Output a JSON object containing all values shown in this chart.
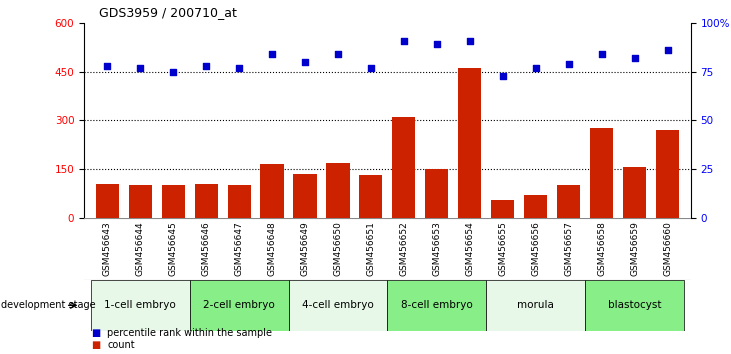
{
  "title": "GDS3959 / 200710_at",
  "samples": [
    "GSM456643",
    "GSM456644",
    "GSM456645",
    "GSM456646",
    "GSM456647",
    "GSM456648",
    "GSM456649",
    "GSM456650",
    "GSM456651",
    "GSM456652",
    "GSM456653",
    "GSM456654",
    "GSM456655",
    "GSM456656",
    "GSM456657",
    "GSM456658",
    "GSM456659",
    "GSM456660"
  ],
  "counts": [
    105,
    102,
    100,
    105,
    101,
    165,
    135,
    170,
    133,
    310,
    150,
    460,
    55,
    70,
    100,
    275,
    155,
    270
  ],
  "percentiles": [
    78,
    77,
    75,
    78,
    77,
    84,
    80,
    84,
    77,
    91,
    89,
    91,
    73,
    77,
    79,
    84,
    82,
    86
  ],
  "ylim_left": [
    0,
    600
  ],
  "ylim_right": [
    0,
    100
  ],
  "yticks_left": [
    0,
    150,
    300,
    450,
    600
  ],
  "yticks_right": [
    0,
    25,
    50,
    75,
    100
  ],
  "stages": [
    {
      "label": "1-cell embryo",
      "start": 0,
      "end": 3,
      "color": "#e8f8e8"
    },
    {
      "label": "2-cell embryo",
      "start": 3,
      "end": 6,
      "color": "#88ee88"
    },
    {
      "label": "4-cell embryo",
      "start": 6,
      "end": 9,
      "color": "#e8f8e8"
    },
    {
      "label": "8-cell embryo",
      "start": 9,
      "end": 12,
      "color": "#88ee88"
    },
    {
      "label": "morula",
      "start": 12,
      "end": 15,
      "color": "#e8f8e8"
    },
    {
      "label": "blastocyst",
      "start": 15,
      "end": 18,
      "color": "#88ee88"
    }
  ],
  "bar_color": "#cc2200",
  "dot_color": "#0000cc",
  "background_color": "#ffffff",
  "tick_bg_color": "#cccccc",
  "dotted_line_color": "#000000",
  "legend_count_color": "#cc2200",
  "legend_dot_color": "#0000cc",
  "dev_stage_label": "development stage"
}
